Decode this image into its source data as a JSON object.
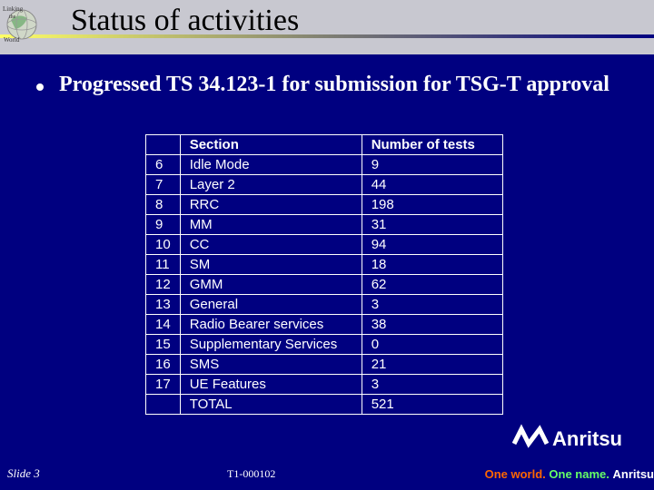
{
  "colors": {
    "background": "#000080",
    "header_bar": "#c8c8d0",
    "accent_gradient_from": "#ffff66",
    "accent_gradient_to": "#000080",
    "text_light": "#ffffff",
    "text_dark": "#000000",
    "tagline_world": "#ff6600",
    "tagline_name": "#66ff66"
  },
  "header": {
    "title": "Status of activities",
    "icon": "globe-icon"
  },
  "body": {
    "bullet_text": "Progressed TS 34.123-1 for submission for TSG-T approval"
  },
  "table": {
    "type": "table",
    "columns": [
      "",
      "Section",
      "Number of tests"
    ],
    "rows": [
      [
        "6",
        "Idle Mode",
        "9"
      ],
      [
        "7",
        "Layer 2",
        "44"
      ],
      [
        "8",
        "RRC",
        "198"
      ],
      [
        "9",
        "MM",
        "31"
      ],
      [
        "10",
        "CC",
        "94"
      ],
      [
        "11",
        "SM",
        "18"
      ],
      [
        "12",
        "GMM",
        "62"
      ],
      [
        "13",
        "General",
        "3"
      ],
      [
        "14",
        "Radio Bearer services",
        "38"
      ],
      [
        "15",
        "Supplementary Services",
        "0"
      ],
      [
        "16",
        "SMS",
        "21"
      ],
      [
        "17",
        "UE Features",
        "3"
      ]
    ],
    "total_label": "TOTAL",
    "total_value": "521",
    "font_size": 15,
    "border_color": "#ffffff"
  },
  "footer": {
    "slide_number": "Slide 3",
    "doc_id": "T1-000102",
    "logo_name": "Anritsu",
    "tagline_1": "One world.",
    "tagline_2": "One name.",
    "tagline_3": "Anritsu"
  }
}
